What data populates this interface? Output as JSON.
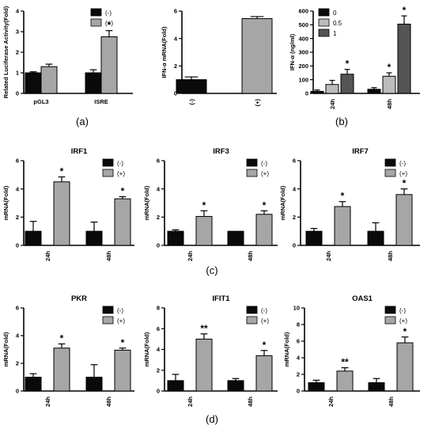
{
  "colors": {
    "black": "#0a0a0a",
    "lightgray": "#a6a6a6",
    "gray": "#bcbcbc",
    "darkgray": "#555555"
  },
  "panel_labels": [
    "(a)",
    "(b)",
    "(c)",
    "(d)"
  ],
  "chart_data": [
    {
      "id": "a1",
      "type": "bar",
      "title": "",
      "xlabel": "",
      "ylabel": "Related Luciferase Activity(Fold)",
      "ylim": [
        0,
        4
      ],
      "yticks": [
        0,
        1,
        2,
        3,
        4
      ],
      "categories": [
        "pGL3",
        "ISRE"
      ],
      "series": [
        {
          "name": "(-)",
          "color": "#0a0a0a",
          "values": [
            1.0,
            1.0
          ],
          "errors": [
            0.05,
            0.15
          ],
          "stars": [
            "",
            ""
          ]
        },
        {
          "name": "(+)",
          "color": "#a6a6a6",
          "values": [
            1.3,
            2.75
          ],
          "errors": [
            0.12,
            0.3
          ],
          "stars": [
            "",
            "*"
          ]
        }
      ],
      "legend": "top-right"
    },
    {
      "id": "a2",
      "type": "bar",
      "title": "",
      "xlabel": "",
      "ylabel": "IFN-α mRNA(Fold)",
      "ylim": [
        0,
        6
      ],
      "yticks": [
        0,
        2,
        4,
        6
      ],
      "categories": [
        "(-)",
        "(+)"
      ],
      "series": [
        {
          "name": "",
          "color": "#0a0a0a",
          "values": [
            1.0,
            null
          ],
          "errors": [
            0.2,
            null
          ],
          "stars": [
            "",
            ""
          ]
        },
        {
          "name": "",
          "color": "#a6a6a6",
          "values": [
            null,
            5.45
          ],
          "errors": [
            null,
            0.15
          ],
          "stars": [
            "",
            ""
          ]
        }
      ],
      "legend": "none"
    },
    {
      "id": "b",
      "type": "bar",
      "title": "",
      "xlabel": "",
      "ylabel": "IFN-α (ng/ml)",
      "ylim": [
        0,
        600
      ],
      "yticks": [
        0,
        100,
        200,
        300,
        400,
        500,
        600
      ],
      "categories": [
        "24h",
        "48h"
      ],
      "series": [
        {
          "name": "0",
          "color": "#0a0a0a",
          "values": [
            15,
            30
          ],
          "errors": [
            10,
            12
          ],
          "stars": [
            "",
            ""
          ]
        },
        {
          "name": "0.5",
          "color": "#bcbcbc",
          "values": [
            65,
            125
          ],
          "errors": [
            30,
            25
          ],
          "stars": [
            "",
            "*"
          ]
        },
        {
          "name": "1",
          "color": "#555555",
          "values": [
            140,
            505
          ],
          "errors": [
            35,
            60
          ],
          "stars": [
            "*",
            "*"
          ]
        }
      ],
      "legend": "top-left"
    },
    {
      "id": "c1",
      "type": "bar",
      "title": "IRF1",
      "xlabel": "",
      "ylabel": "mRNA(Fold)",
      "ylim": [
        0,
        6
      ],
      "yticks": [
        0,
        2,
        4,
        6
      ],
      "categories": [
        "24h",
        "48h"
      ],
      "series": [
        {
          "name": "(-)",
          "color": "#0a0a0a",
          "values": [
            1.0,
            1.0
          ],
          "errors": [
            0.7,
            0.65
          ],
          "stars": [
            "",
            ""
          ]
        },
        {
          "name": "(+)",
          "color": "#a6a6a6",
          "values": [
            4.5,
            3.3
          ],
          "errors": [
            0.35,
            0.15
          ],
          "stars": [
            "*",
            "*"
          ]
        }
      ],
      "legend": "top-right"
    },
    {
      "id": "c2",
      "type": "bar",
      "title": "IRF3",
      "xlabel": "",
      "ylabel": "mRNA(Fold)",
      "ylim": [
        0,
        6
      ],
      "yticks": [
        0,
        2,
        4,
        6
      ],
      "categories": [
        "24h",
        "48h"
      ],
      "series": [
        {
          "name": "(-)",
          "color": "#0a0a0a",
          "values": [
            1.0,
            1.0
          ],
          "errors": [
            0.1,
            0.0
          ],
          "stars": [
            "",
            ""
          ]
        },
        {
          "name": "(+)",
          "color": "#a6a6a6",
          "values": [
            2.05,
            2.2
          ],
          "errors": [
            0.4,
            0.25
          ],
          "stars": [
            "*",
            "*"
          ]
        }
      ],
      "legend": "top-right"
    },
    {
      "id": "c3",
      "type": "bar",
      "title": "IRF7",
      "xlabel": "",
      "ylabel": "mRNA(Fold)",
      "ylim": [
        0,
        6
      ],
      "yticks": [
        0,
        2,
        4,
        6
      ],
      "categories": [
        "24h",
        "48h"
      ],
      "series": [
        {
          "name": "(-)",
          "color": "#0a0a0a",
          "values": [
            1.0,
            1.0
          ],
          "errors": [
            0.2,
            0.6
          ],
          "stars": [
            "",
            ""
          ]
        },
        {
          "name": "(+)",
          "color": "#a6a6a6",
          "values": [
            2.75,
            3.6
          ],
          "errors": [
            0.35,
            0.4
          ],
          "stars": [
            "*",
            "*"
          ]
        }
      ],
      "legend": "top-right"
    },
    {
      "id": "d1",
      "type": "bar",
      "title": "PKR",
      "xlabel": "",
      "ylabel": "mRNA(Fold)",
      "ylim": [
        0,
        6
      ],
      "yticks": [
        0,
        2,
        4,
        6
      ],
      "categories": [
        "24h",
        "48h"
      ],
      "series": [
        {
          "name": "(-)",
          "color": "#0a0a0a",
          "values": [
            1.0,
            1.0
          ],
          "errors": [
            0.25,
            0.9
          ],
          "stars": [
            "",
            ""
          ]
        },
        {
          "name": "(+)",
          "color": "#a6a6a6",
          "values": [
            3.1,
            2.95
          ],
          "errors": [
            0.3,
            0.15
          ],
          "stars": [
            "*",
            "*"
          ]
        }
      ],
      "legend": "top-right"
    },
    {
      "id": "d2",
      "type": "bar",
      "title": "IFIT1",
      "xlabel": "",
      "ylabel": "mRNA(Fold)",
      "ylim": [
        0,
        8
      ],
      "yticks": [
        0,
        2,
        4,
        6,
        8
      ],
      "categories": [
        "24h",
        "48h"
      ],
      "series": [
        {
          "name": "(-)",
          "color": "#0a0a0a",
          "values": [
            1.0,
            1.0
          ],
          "errors": [
            0.6,
            0.2
          ],
          "stars": [
            "",
            ""
          ]
        },
        {
          "name": "(+)",
          "color": "#a6a6a6",
          "values": [
            5.0,
            3.4
          ],
          "errors": [
            0.5,
            0.5
          ],
          "stars": [
            "**",
            "*"
          ]
        }
      ],
      "legend": "top-right"
    },
    {
      "id": "d3",
      "type": "bar",
      "title": "OAS1",
      "xlabel": "",
      "ylabel": "mRNA(Fold)",
      "ylim": [
        0,
        10
      ],
      "yticks": [
        0,
        2,
        4,
        6,
        8,
        10
      ],
      "categories": [
        "24h",
        "48h"
      ],
      "series": [
        {
          "name": "(-)",
          "color": "#0a0a0a",
          "values": [
            1.0,
            1.0
          ],
          "errors": [
            0.3,
            0.5
          ],
          "stars": [
            "",
            ""
          ]
        },
        {
          "name": "(+)",
          "color": "#a6a6a6",
          "values": [
            2.4,
            5.8
          ],
          "errors": [
            0.4,
            0.7
          ],
          "stars": [
            "**",
            "*"
          ]
        }
      ],
      "legend": "top-right"
    }
  ]
}
